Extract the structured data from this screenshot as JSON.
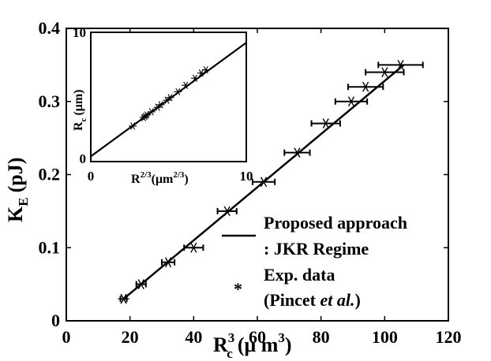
{
  "chart_data": [
    {
      "type": "scatter",
      "title": "",
      "xlabel": {
        "base": "R",
        "sub": "c",
        "sup": "3",
        "unit": "(μ m",
        "unit_sup": "3",
        "unit_end": ")"
      },
      "ylabel": {
        "base": "K",
        "sub": "E",
        "unit": "(pJ)"
      },
      "xlim": [
        0,
        120
      ],
      "ylim": [
        0,
        0.4
      ],
      "x_ticks": [
        "0",
        "20",
        "40",
        "60",
        "80",
        "100",
        "120"
      ],
      "y_ticks": [
        "0",
        "0.1",
        "0.2",
        "0.3",
        "0.4"
      ],
      "x_tick_values": [
        0,
        20,
        40,
        60,
        80,
        100,
        120
      ],
      "y_tick_values": [
        0,
        0.1,
        0.2,
        0.3,
        0.4
      ],
      "series": [
        {
          "name": "Proposed approach : JKR Regime",
          "kind": "line",
          "x": [
            18,
            106
          ],
          "y": [
            0.03,
            0.35
          ]
        },
        {
          "name": "Exp. data (Pincet et al.)",
          "kind": "scatter",
          "marker": "*",
          "x": [
            18,
            23.5,
            32,
            40,
            50.5,
            62,
            72.5,
            81.5,
            89.5,
            94,
            100,
            105
          ],
          "y": [
            0.03,
            0.05,
            0.08,
            0.1,
            0.15,
            0.19,
            0.23,
            0.27,
            0.3,
            0.32,
            0.34,
            0.35
          ],
          "xerr": [
            1,
            1.5,
            2,
            3,
            3,
            3.5,
            4,
            4.5,
            5,
            5.5,
            6,
            7
          ]
        }
      ],
      "legend": {
        "placement": "lower-right",
        "line_lines": [
          "Proposed approach",
          ": JKR Regime"
        ],
        "marker_lines": [
          "Exp. data",
          "(Pincet ",
          "et al.",
          ")"
        ]
      }
    },
    {
      "type": "scatter",
      "title": "",
      "placement": "inset top-left",
      "xlabel": {
        "base": "R",
        "sup": "2/3",
        "unit": "(μm",
        "unit_sup": "2/3",
        "unit_end": ")"
      },
      "ylabel": {
        "base": "R",
        "sub": "c",
        "unit": "(μm)"
      },
      "xlim": [
        0,
        10
      ],
      "ylim": [
        0,
        10
      ],
      "x_ticks": [
        "0",
        "10"
      ],
      "y_ticks": [
        "0",
        "10"
      ],
      "x_tick_values": [
        0,
        10
      ],
      "y_tick_values": [
        0,
        10
      ],
      "series": [
        {
          "kind": "line",
          "x": [
            0,
            10
          ],
          "y": [
            0.4,
            9.2
          ]
        },
        {
          "kind": "scatter",
          "marker": "*",
          "x": [
            2.7,
            3.4,
            3.5,
            3.6,
            3.9,
            4.3,
            4.5,
            4.9,
            5.1,
            5.6,
            6.1,
            6.7,
            7.1,
            7.4
          ],
          "y": [
            2.75,
            3.4,
            3.5,
            3.6,
            3.85,
            4.2,
            4.4,
            4.75,
            4.95,
            5.4,
            5.9,
            6.45,
            6.85,
            7.1
          ]
        }
      ]
    }
  ]
}
